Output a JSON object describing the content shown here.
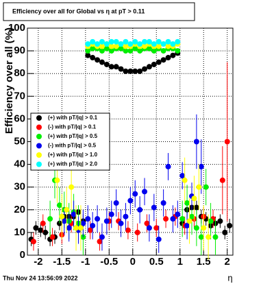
{
  "chart_data": {
    "type": "scatter",
    "title": "Efficiency over all for Global vs  η at pT > 0.11",
    "x_label": "η",
    "y_label": "Efficiency over all (%)",
    "timestamp": "Thu Nov 24 13:56:09 2022",
    "xlim": [
      -2.23,
      2.12
    ],
    "ylim": [
      0,
      100
    ],
    "xticks": [
      -2,
      -1.5,
      -1,
      -0.5,
      0,
      0.5,
      1,
      1.5,
      2
    ],
    "yticks": [
      0,
      10,
      20,
      30,
      40,
      50,
      60,
      70,
      80,
      90,
      100
    ],
    "grid": true,
    "series": [
      {
        "name": "(+) with pT/|q| > 0.1",
        "color": "#000000",
        "x": [
          -2.15,
          -2.05,
          -1.95,
          -1.85,
          -1.75,
          -1.65,
          -1.55,
          -1.45,
          -1.35,
          -1.25,
          -1.15,
          -1.05,
          -0.95,
          -0.85,
          -0.75,
          -0.65,
          -0.55,
          -0.45,
          -0.35,
          -0.25,
          -0.15,
          -0.05,
          0.05,
          0.15,
          0.25,
          0.35,
          0.45,
          0.55,
          0.65,
          0.75,
          0.85,
          0.95,
          1.05,
          1.15,
          1.25,
          1.35,
          1.45,
          1.55,
          1.65,
          1.75,
          1.85,
          1.95,
          2.05
        ],
        "values": [
          7,
          12,
          11,
          10,
          7,
          8,
          14,
          17,
          17,
          17,
          19,
          15,
          88,
          87,
          86,
          85,
          84,
          83,
          83,
          82,
          81,
          81,
          81,
          81,
          82,
          83,
          84,
          85,
          86,
          87,
          88,
          89,
          14,
          20,
          21,
          21,
          17,
          16,
          13,
          14,
          15,
          10,
          13
        ],
        "errors": [
          3,
          3,
          3,
          3,
          3,
          3,
          3,
          3,
          3,
          3,
          3,
          3,
          0.5,
          0.5,
          0.5,
          0.5,
          0.5,
          0.5,
          0.5,
          0.5,
          0.5,
          0.5,
          0.5,
          0.5,
          0.5,
          0.5,
          0.5,
          0.5,
          0.5,
          0.5,
          0.5,
          0.5,
          3,
          3,
          3,
          3,
          3,
          3,
          3,
          3,
          3,
          3,
          3
        ]
      },
      {
        "name": "(-) with pT/|q| > 0.1",
        "color": "#ff0000",
        "x": [
          -2.1,
          -1.9,
          -1.7,
          -1.5,
          -1.3,
          -1.1,
          -0.9,
          -0.7,
          -0.5,
          -0.3,
          -0.1,
          0.1,
          0.3,
          0.5,
          0.7,
          0.9,
          1.1,
          1.3,
          1.5,
          1.7,
          1.9,
          2.0
        ],
        "values": [
          6,
          14,
          8,
          9,
          14,
          13,
          11,
          6,
          15,
          15,
          11,
          10,
          14,
          12,
          16,
          17,
          13,
          16,
          17,
          16,
          33,
          50
        ],
        "errors": [
          4,
          4,
          4,
          4,
          4,
          4,
          4,
          4,
          4,
          4,
          4,
          4,
          4,
          4,
          4,
          4,
          4,
          4,
          4,
          4,
          15,
          35
        ]
      },
      {
        "name": "(+) with pT/|q| > 0.5",
        "color": "#00ee00",
        "x": [
          -1.75,
          -1.65,
          -1.55,
          -1.45,
          -1.35,
          -1.25,
          -1.15,
          -1.05,
          -0.95,
          -0.85,
          -0.75,
          -0.65,
          -0.55,
          -0.45,
          -0.35,
          -0.25,
          -0.15,
          -0.05,
          0.05,
          0.15,
          0.25,
          0.35,
          0.45,
          0.55,
          0.65,
          0.75,
          0.85,
          0.95,
          1.05,
          1.15,
          1.25,
          1.35,
          1.45,
          1.55,
          1.65,
          1.75
        ],
        "values": [
          16,
          33,
          22,
          20,
          15,
          19,
          14,
          8,
          90,
          91,
          91,
          90,
          91,
          90,
          91,
          91,
          90,
          90,
          91,
          90,
          91,
          91,
          90,
          91,
          90,
          91,
          91,
          90,
          16,
          23,
          17,
          12,
          8,
          30,
          15,
          8
        ],
        "errors": [
          8,
          8,
          8,
          8,
          8,
          8,
          8,
          8,
          0.8,
          0.8,
          0.8,
          0.8,
          0.8,
          0.8,
          0.8,
          0.8,
          0.8,
          0.8,
          0.8,
          0.8,
          0.8,
          0.8,
          0.8,
          0.8,
          0.8,
          0.8,
          0.8,
          0.8,
          8,
          8,
          8,
          8,
          8,
          8,
          8,
          8
        ]
      },
      {
        "name": "(-) with pT/|q| > 0.5",
        "color": "#0000ee",
        "x": [
          -1.45,
          -1.35,
          -1.25,
          -1.15,
          -1.05,
          -0.95,
          -0.85,
          -0.75,
          -0.65,
          -0.55,
          -0.45,
          -0.35,
          -0.25,
          -0.15,
          -0.05,
          0.05,
          0.15,
          0.25,
          0.35,
          0.45,
          0.55,
          0.65,
          0.75,
          0.85,
          0.95,
          1.05,
          1.15,
          1.25,
          1.35,
          1.45
        ],
        "values": [
          15,
          12,
          18,
          11,
          14,
          16,
          13,
          16,
          8,
          15,
          18,
          23,
          14,
          17,
          24,
          27,
          20,
          28,
          12,
          21,
          7,
          23,
          39,
          16,
          18,
          35,
          13,
          26,
          50,
          39
        ],
        "errors": [
          6,
          6,
          6,
          6,
          6,
          6,
          6,
          6,
          6,
          6,
          6,
          6,
          6,
          6,
          6,
          6,
          6,
          6,
          6,
          6,
          6,
          6,
          6,
          6,
          6,
          6,
          6,
          6,
          12,
          12
        ]
      },
      {
        "name": "(+) with pT/|q| > 1.0",
        "color": "#ffff00",
        "x": [
          -1.6,
          -1.5,
          -1.4,
          -1.3,
          -1.2,
          -1.1,
          -0.95,
          -0.85,
          -0.75,
          -0.65,
          -0.55,
          -0.45,
          -0.35,
          -0.25,
          -0.15,
          -0.05,
          0.05,
          0.15,
          0.25,
          0.35,
          0.45,
          0.55,
          0.65,
          0.75,
          0.85,
          0.95,
          1.1,
          1.2,
          1.3,
          1.4,
          1.5,
          1.6
        ],
        "values": [
          33,
          17,
          20,
          30,
          12,
          12,
          92,
          93,
          92,
          92,
          93,
          92,
          92,
          93,
          92,
          92,
          93,
          92,
          92,
          93,
          92,
          92,
          93,
          92,
          92,
          93,
          33,
          15,
          25,
          30,
          12,
          8
        ],
        "errors": [
          10,
          10,
          10,
          10,
          10,
          10,
          0.8,
          0.8,
          0.8,
          0.8,
          0.8,
          0.8,
          0.8,
          0.8,
          0.8,
          0.8,
          0.8,
          0.8,
          0.8,
          0.8,
          0.8,
          0.8,
          0.8,
          0.8,
          0.8,
          0.8,
          10,
          10,
          10,
          10,
          10,
          10
        ]
      },
      {
        "name": "(+) with pT/|q| > 2.0",
        "color": "#00ffff",
        "x": [
          -0.95,
          -0.85,
          -0.75,
          -0.65,
          -0.55,
          -0.45,
          -0.35,
          -0.25,
          -0.15,
          -0.05,
          0.05,
          0.15,
          0.25,
          0.35,
          0.45,
          0.55,
          0.65,
          0.75,
          0.85,
          0.95
        ],
        "values": [
          93,
          94,
          93,
          94,
          93,
          94,
          94,
          93,
          94,
          93,
          94,
          93,
          94,
          94,
          93,
          94,
          93,
          94,
          93,
          94
        ],
        "errors": [
          0.8,
          0.8,
          0.8,
          0.8,
          0.8,
          0.8,
          0.8,
          0.8,
          0.8,
          0.8,
          0.8,
          0.8,
          0.8,
          0.8,
          0.8,
          0.8,
          0.8,
          0.8,
          0.8,
          0.8
        ]
      }
    ]
  }
}
